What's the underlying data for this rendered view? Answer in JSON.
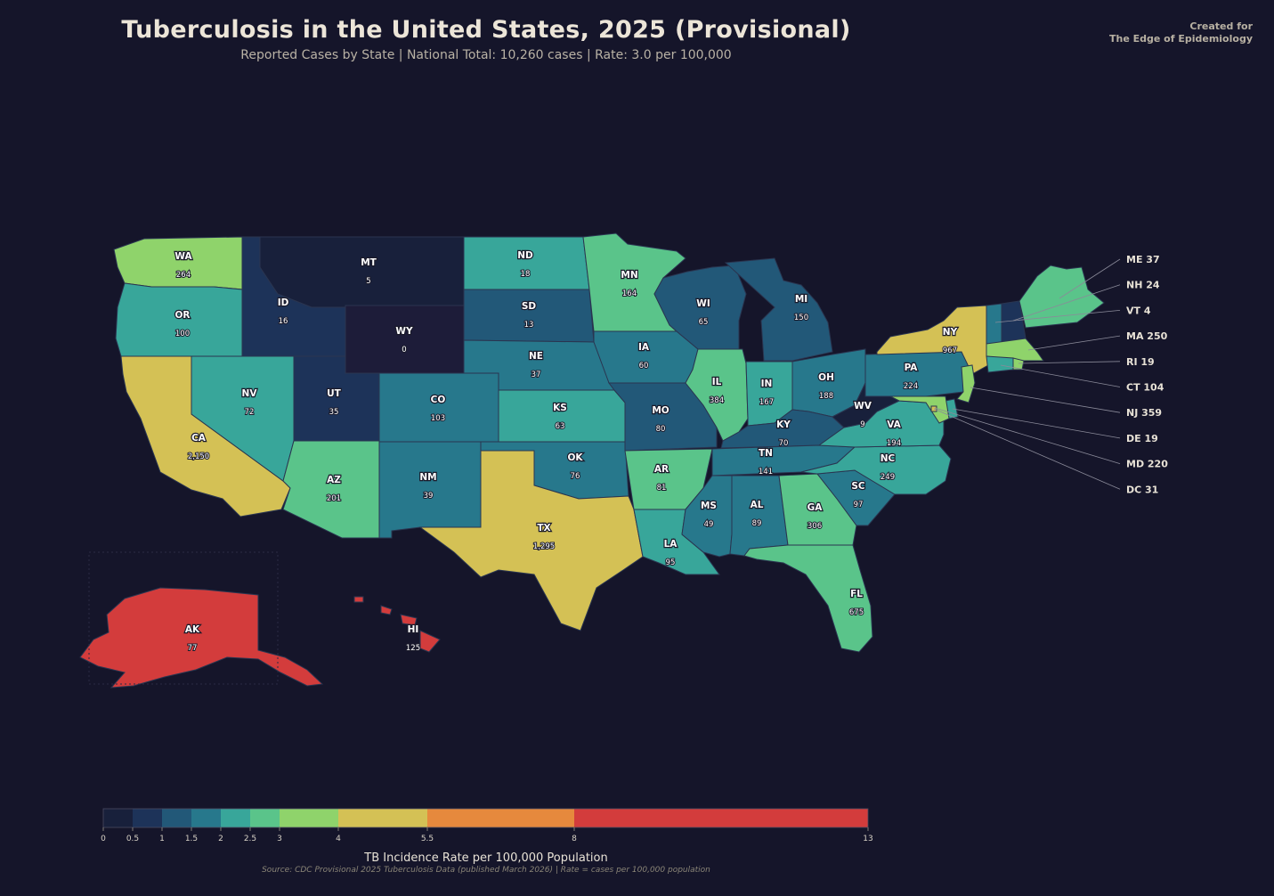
{
  "title": "Tuberculosis in the United States, 2025 (Provisional)",
  "subtitle": "Reported Cases by State  |  National Total: 10,260 cases  |  Rate: 3.0 per 100,000",
  "credit": {
    "line1": "Created for",
    "line2": "The Edge of Epidemiology"
  },
  "states": [
    {
      "abbr": "WA",
      "cases": "264",
      "color": "#8fd36b"
    },
    {
      "abbr": "OR",
      "cases": "100",
      "color": "#38a69a"
    },
    {
      "abbr": "CA",
      "cases": "2,150",
      "color": "#d4c155"
    },
    {
      "abbr": "ID",
      "cases": "16",
      "color": "#1d3359"
    },
    {
      "abbr": "NV",
      "cases": "72",
      "color": "#38a69a"
    },
    {
      "abbr": "MT",
      "cases": "5",
      "color": "#18203b"
    },
    {
      "abbr": "WY",
      "cases": "0",
      "color": "#1d1c39"
    },
    {
      "abbr": "UT",
      "cases": "35",
      "color": "#1d3359"
    },
    {
      "abbr": "AZ",
      "cases": "201",
      "color": "#5ac48a"
    },
    {
      "abbr": "CO",
      "cases": "103",
      "color": "#27788c"
    },
    {
      "abbr": "NM",
      "cases": "39",
      "color": "#27788c"
    },
    {
      "abbr": "ND",
      "cases": "18",
      "color": "#38a69a"
    },
    {
      "abbr": "SD",
      "cases": "13",
      "color": "#225878"
    },
    {
      "abbr": "NE",
      "cases": "37",
      "color": "#27788c"
    },
    {
      "abbr": "KS",
      "cases": "63",
      "color": "#38a69a"
    },
    {
      "abbr": "OK",
      "cases": "76",
      "color": "#27788c"
    },
    {
      "abbr": "TX",
      "cases": "1,295",
      "color": "#d4c155"
    },
    {
      "abbr": "MN",
      "cases": "164",
      "color": "#5ac48a"
    },
    {
      "abbr": "IA",
      "cases": "60",
      "color": "#27788c"
    },
    {
      "abbr": "MO",
      "cases": "80",
      "color": "#225878"
    },
    {
      "abbr": "AR",
      "cases": "81",
      "color": "#5ac48a"
    },
    {
      "abbr": "LA",
      "cases": "95",
      "color": "#38a69a"
    },
    {
      "abbr": "WI",
      "cases": "65",
      "color": "#225878"
    },
    {
      "abbr": "IL",
      "cases": "384",
      "color": "#5ac48a"
    },
    {
      "abbr": "MI",
      "cases": "150",
      "color": "#225878"
    },
    {
      "abbr": "IN",
      "cases": "167",
      "color": "#38a69a"
    },
    {
      "abbr": "OH",
      "cases": "188",
      "color": "#27788c"
    },
    {
      "abbr": "KY",
      "cases": "70",
      "color": "#225878"
    },
    {
      "abbr": "TN",
      "cases": "141",
      "color": "#27788c"
    },
    {
      "abbr": "MS",
      "cases": "49",
      "color": "#27788c"
    },
    {
      "abbr": "AL",
      "cases": "89",
      "color": "#27788c"
    },
    {
      "abbr": "GA",
      "cases": "306",
      "color": "#5ac48a"
    },
    {
      "abbr": "FL",
      "cases": "675",
      "color": "#5ac48a"
    },
    {
      "abbr": "SC",
      "cases": "97",
      "color": "#27788c"
    },
    {
      "abbr": "NC",
      "cases": "249",
      "color": "#38a69a"
    },
    {
      "abbr": "VA",
      "cases": "194",
      "color": "#38a69a"
    },
    {
      "abbr": "WV",
      "cases": "9",
      "color": "#18203b"
    },
    {
      "abbr": "PA",
      "cases": "224",
      "color": "#27788c"
    },
    {
      "abbr": "NY",
      "cases": "967",
      "color": "#d4c155"
    },
    {
      "abbr": "AK",
      "cases": "77",
      "color": "#d33c3c"
    },
    {
      "abbr": "HI",
      "cases": "125",
      "color": "#d33c3c"
    }
  ],
  "callouts": [
    {
      "abbr": "ME",
      "cases": "37",
      "color": "#5ac48a"
    },
    {
      "abbr": "NH",
      "cases": "24",
      "color": "#1d3359"
    },
    {
      "abbr": "VT",
      "cases": "4",
      "color": "#27788c"
    },
    {
      "abbr": "MA",
      "cases": "250",
      "color": "#8fd36b"
    },
    {
      "abbr": "RI",
      "cases": "19",
      "color": "#8fd36b"
    },
    {
      "abbr": "CT",
      "cases": "104",
      "color": "#38a69a"
    },
    {
      "abbr": "NJ",
      "cases": "359",
      "color": "#8fd36b"
    },
    {
      "abbr": "DE",
      "cases": "19",
      "color": "#38a69a"
    },
    {
      "abbr": "MD",
      "cases": "220",
      "color": "#8fd36b"
    },
    {
      "abbr": "DC",
      "cases": "31",
      "color": "#d4c155"
    }
  ],
  "colorbar": {
    "label": "TB Incidence Rate per 100,000 Population",
    "bins": [
      {
        "from": 0,
        "to": 0.5,
        "color": "#18203b"
      },
      {
        "from": 0.5,
        "to": 1,
        "color": "#1d3359"
      },
      {
        "from": 1,
        "to": 1.5,
        "color": "#225878"
      },
      {
        "from": 1.5,
        "to": 2,
        "color": "#27788c"
      },
      {
        "from": 2,
        "to": 2.5,
        "color": "#38a69a"
      },
      {
        "from": 2.5,
        "to": 3,
        "color": "#5ac48a"
      },
      {
        "from": 3,
        "to": 4,
        "color": "#8fd36b"
      },
      {
        "from": 4,
        "to": 5.5,
        "color": "#d4c155"
      },
      {
        "from": 5.5,
        "to": 8,
        "color": "#e6893d"
      },
      {
        "from": 8,
        "to": 13,
        "color": "#d33c3c"
      }
    ],
    "ticks": [
      "0",
      "0.5",
      "1",
      "1.5",
      "2",
      "2.5",
      "3",
      "4",
      "5.5",
      "8",
      "13"
    ]
  },
  "source": "Source: CDC Provisional 2025 Tuberculosis Data (published March 2026)  |  Rate = cases per 100,000 population"
}
